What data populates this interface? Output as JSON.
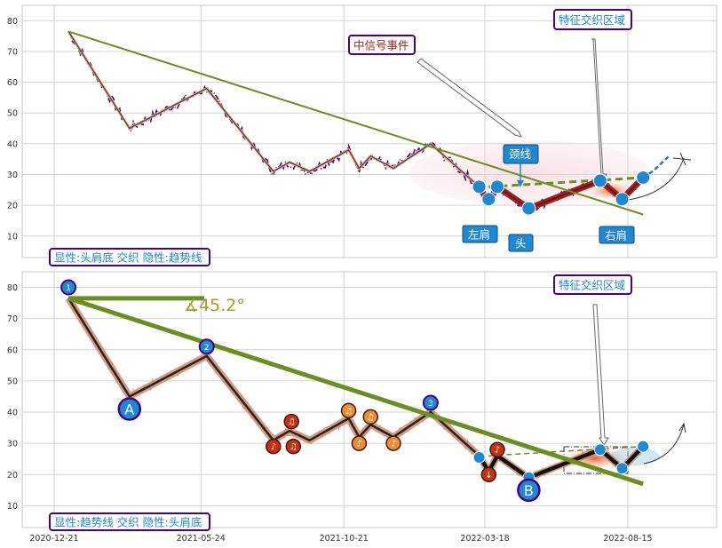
{
  "colors": {
    "plot_bg": "#ffffff",
    "grid": "#d3d3d3",
    "price_top": "#4b0082",
    "price_bottom": "#e8a838",
    "trend": "#6b8e23",
    "zigzag_outline": "#e0a080",
    "zigzag": "#222222",
    "hs_fill": "#a02020",
    "point_blue": "#1e88d0",
    "label_border": "#4b0082",
    "label_text": "#1e88d0",
    "red_text": "#a02020",
    "angle_text": "#9aa22a",
    "neck": "#6b8e23",
    "ellipse": "#f4b8c0",
    "zone_orange": "#e8a060",
    "note_red": "#c83010",
    "note_orange": "#f08c30"
  },
  "chart_data": [
    {
      "type": "line",
      "panel": "top",
      "x_ticks": [],
      "yticks": [
        10,
        20,
        30,
        40,
        50,
        60,
        70,
        80
      ],
      "ylim": [
        3,
        85
      ],
      "grid": true,
      "annotations": {
        "box_bottom_left": "显性:头肩底 交织 隐性:趋势线",
        "mid_signal": "中信号事件",
        "zone": "特征交织区域",
        "neckline": "颈线",
        "left_shoulder": "左肩",
        "head": "头",
        "right_shoulder": "右肩"
      }
    },
    {
      "type": "line",
      "panel": "bottom",
      "x_ticks": [
        "2020-12-21",
        "2021-05-24",
        "2021-10-21",
        "2022-03-18",
        "2022-08-15"
      ],
      "yticks": [
        10,
        20,
        30,
        40,
        50,
        60,
        70,
        80
      ],
      "ylim": [
        3,
        85
      ],
      "grid": true,
      "annotations": {
        "box_bottom_left": "显性:趋势线 交织 隐性:头肩底",
        "zone": "特征交织区域",
        "angle": "∡45.2°",
        "point_a": "A",
        "point_b": "B",
        "num_1": "1",
        "num_2": "2",
        "num_3": "3"
      }
    }
  ],
  "zigzag": [
    {
      "x": "2021-01-05",
      "y": 76.5
    },
    {
      "x": "2021-03-10",
      "y": 45
    },
    {
      "x": "2021-05-30",
      "y": 58
    },
    {
      "x": "2021-08-08",
      "y": 31
    },
    {
      "x": "2021-08-25",
      "y": 34
    },
    {
      "x": "2021-09-15",
      "y": 31
    },
    {
      "x": "2021-10-26",
      "y": 38
    },
    {
      "x": "2021-11-06",
      "y": 32
    },
    {
      "x": "2021-11-18",
      "y": 36
    },
    {
      "x": "2021-12-12",
      "y": 32
    },
    {
      "x": "2022-01-20",
      "y": 40
    },
    {
      "x": "2022-03-12",
      "y": 26
    },
    {
      "x": "2022-03-22",
      "y": 21
    },
    {
      "x": "2022-03-31",
      "y": 26
    },
    {
      "x": "2022-05-03",
      "y": 19
    },
    {
      "x": "2022-07-17",
      "y": 28
    },
    {
      "x": "2022-08-09",
      "y": 22
    },
    {
      "x": "2022-08-31",
      "y": 29
    }
  ],
  "trendline": [
    {
      "x": "2021-01-05",
      "y": 76.5
    },
    {
      "x": "2022-08-31",
      "y": 17
    }
  ],
  "neckline": [
    {
      "x": "2022-03-22",
      "y": 26
    },
    {
      "x": "2022-08-31",
      "y": 29
    }
  ],
  "top_markers": [
    {
      "x": "2022-03-12",
      "y": 26
    },
    {
      "x": "2022-03-22",
      "y": 22
    },
    {
      "x": "2022-03-31",
      "y": 26
    },
    {
      "x": "2022-05-03",
      "y": 19
    },
    {
      "x": "2022-07-17",
      "y": 28
    },
    {
      "x": "2022-08-09",
      "y": 22
    },
    {
      "x": "2022-08-31",
      "y": 29
    }
  ],
  "bottom_markers": [
    {
      "x": "2022-03-12",
      "y": 25.5
    },
    {
      "x": "2022-07-17",
      "y": 28
    },
    {
      "x": "2022-08-09",
      "y": 22
    },
    {
      "x": "2022-08-31",
      "y": 29
    },
    {
      "x": "2022-05-03",
      "y": 19
    }
  ],
  "notes": [
    {
      "x": "2021-08-08",
      "y": 29,
      "c": "red",
      "g": "♪"
    },
    {
      "x": "2021-08-27",
      "y": 37,
      "c": "red",
      "g": "♫"
    },
    {
      "x": "2021-08-29",
      "y": 29,
      "c": "red",
      "g": "♫"
    },
    {
      "x": "2021-10-26",
      "y": 40.5,
      "c": "orange",
      "g": "♫"
    },
    {
      "x": "2021-11-06",
      "y": 30,
      "c": "orange",
      "g": "♪"
    },
    {
      "x": "2021-11-18",
      "y": 38.5,
      "c": "orange",
      "g": "♫"
    },
    {
      "x": "2021-12-12",
      "y": 30,
      "c": "orange",
      "g": "♪"
    },
    {
      "x": "2022-03-22",
      "y": 20,
      "c": "red",
      "g": "↓"
    },
    {
      "x": "2022-03-31",
      "y": 28,
      "c": "red",
      "g": "♪"
    }
  ]
}
